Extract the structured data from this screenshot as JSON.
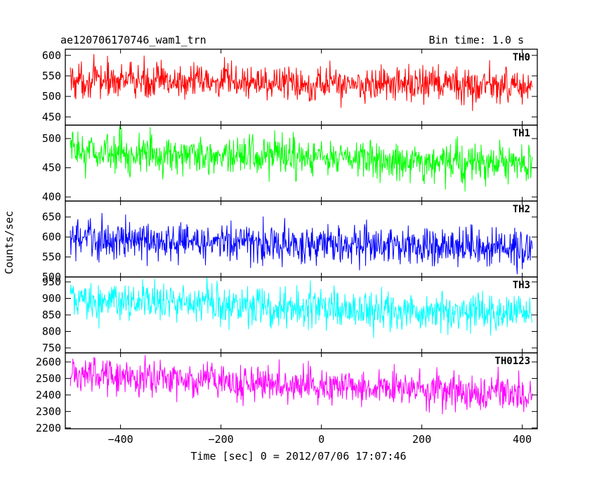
{
  "chart_data": {
    "type": "line",
    "title": "ae120706170746_wam1_trn",
    "bin_time_label": "Bin time: 1.0 s",
    "ylabel": "Counts/sec",
    "xlabel": "Time [sec] 0 = 2012/07/06 17:07:46",
    "xlim": [
      -510,
      430
    ],
    "x_ticks": [
      -400,
      -200,
      0,
      200,
      400
    ],
    "x_tick_labels": [
      "−400",
      "−200",
      "0",
      "200",
      "400"
    ],
    "x_range": [
      -500,
      420
    ],
    "bin_time_s": 1.0,
    "panels": [
      {
        "name": "TH0",
        "color": "#ff0000",
        "ylim": [
          430,
          615
        ],
        "yticks": [
          450,
          500,
          550,
          600
        ],
        "ytick_labels": [
          "450",
          "500",
          "550",
          "600"
        ],
        "start_mean": 540,
        "end_mean": 525,
        "noise_sd": 22
      },
      {
        "name": "TH1",
        "color": "#00ff00",
        "ylim": [
          393,
          523
        ],
        "yticks": [
          400,
          450,
          500
        ],
        "ytick_labels": [
          "400",
          "450",
          "500"
        ],
        "start_mean": 478,
        "end_mean": 455,
        "noise_sd": 17
      },
      {
        "name": "TH2",
        "color": "#0000ff",
        "ylim": [
          500,
          690
        ],
        "yticks": [
          500,
          550,
          600,
          650
        ],
        "ytick_labels": [
          "500",
          "550",
          "600",
          "650"
        ],
        "start_mean": 595,
        "end_mean": 570,
        "noise_sd": 25
      },
      {
        "name": "TH3",
        "color": "#00ffff",
        "ylim": [
          735,
          965
        ],
        "yticks": [
          750,
          800,
          850,
          900,
          950
        ],
        "ytick_labels": [
          "750",
          "800",
          "850",
          "900",
          "950"
        ],
        "start_mean": 895,
        "end_mean": 850,
        "noise_sd": 30
      },
      {
        "name": "TH0123",
        "color": "#ff00ff",
        "ylim": [
          2195,
          2655
        ],
        "yticks": [
          2200,
          2300,
          2400,
          2500,
          2600
        ],
        "ytick_labels": [
          "2200",
          "2300",
          "2400",
          "2500",
          "2600"
        ],
        "start_mean": 2530,
        "end_mean": 2400,
        "noise_sd": 55
      }
    ]
  }
}
